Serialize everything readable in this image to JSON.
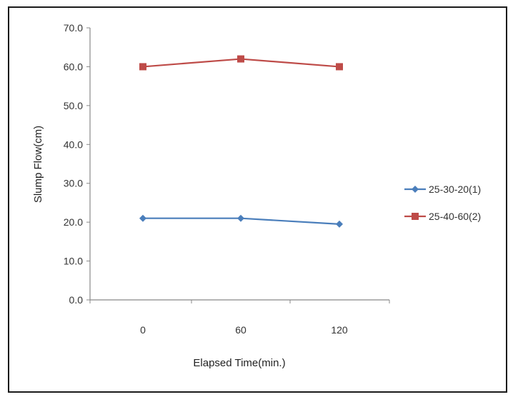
{
  "chart_data": {
    "type": "line",
    "categories": [
      "0",
      "60",
      "120"
    ],
    "xlabel": "Elapsed Time(min.)",
    "ylabel": "Slump Flow(cm)",
    "ylim": [
      0,
      70
    ],
    "yticks": [
      "0.0",
      "10.0",
      "20.0",
      "30.0",
      "40.0",
      "50.0",
      "60.0",
      "70.0"
    ],
    "grid": false,
    "legend_position": "right",
    "series": [
      {
        "name": "25-30-20(1)",
        "values": [
          21.0,
          21.0,
          19.5
        ],
        "color": "#4a7ebb",
        "marker": "diamond"
      },
      {
        "name": "25-40-60(2)",
        "values": [
          60.0,
          62.0,
          60.0
        ],
        "color": "#be4b48",
        "marker": "square"
      }
    ]
  }
}
